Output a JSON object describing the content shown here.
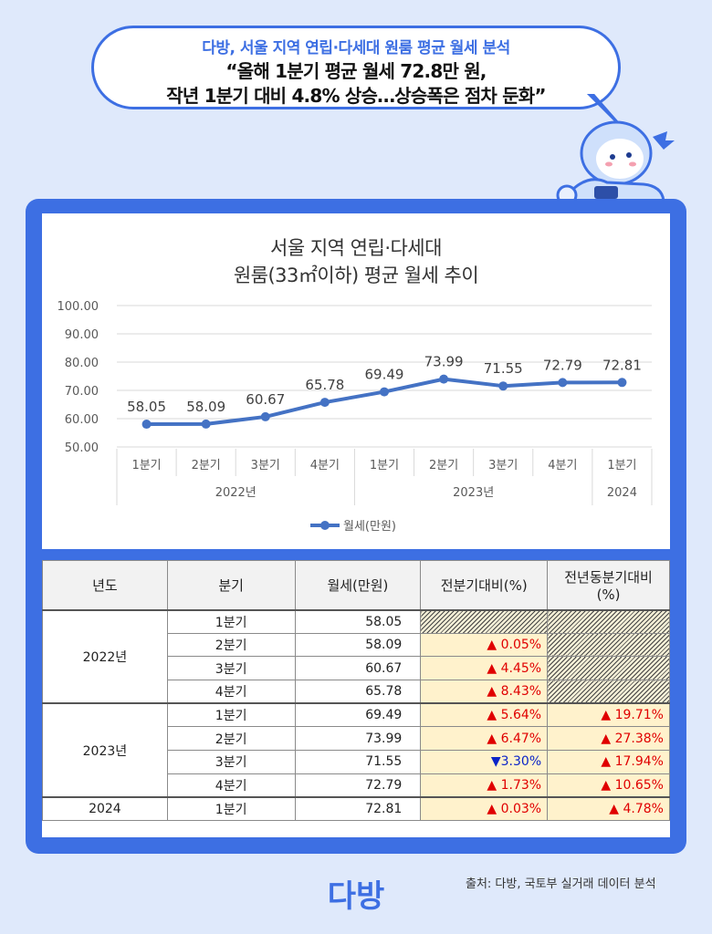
{
  "headline": {
    "line1": "다방, 서울 지역 연립·다세대 원룸 평균 월세 분석",
    "line2": "“올해 1분기 평균 월세 72.8만 원,",
    "line3": "작년 1분기 대비 4.8% 상승…상승폭은 점차 둔화”"
  },
  "colors": {
    "accent": "#3d6fe3",
    "line": "#4472c4",
    "up": "#e00000",
    "down": "#0b24c8",
    "highlight_cell": "#fff2cc"
  },
  "chart_data": {
    "type": "line",
    "title_line1": "서울 지역 연립·다세대",
    "title_line2": "원룸(33㎡이하) 평균 월세 추이",
    "categories": [
      "1분기",
      "2분기",
      "3분기",
      "4분기",
      "1분기",
      "2분기",
      "3분기",
      "4분기",
      "1분기"
    ],
    "groups": [
      {
        "label": "2022년",
        "count": 4
      },
      {
        "label": "2023년",
        "count": 4
      },
      {
        "label": "2024",
        "count": 1
      }
    ],
    "series": [
      {
        "name": "월세(만원)",
        "values": [
          58.05,
          58.09,
          60.67,
          65.78,
          69.49,
          73.99,
          71.55,
          72.79,
          72.81
        ]
      }
    ],
    "value_labels": [
      "58.05",
      "58.09",
      "60.67",
      "65.78",
      "69.49",
      "73.99",
      "71.55",
      "72.79",
      "72.81"
    ],
    "ylim": [
      50,
      100
    ],
    "yticks": [
      "50.00",
      "60.00",
      "70.00",
      "80.00",
      "90.00",
      "100.00"
    ],
    "grid": true,
    "legend": "bottom"
  },
  "table": {
    "headers": [
      "년도",
      "분기",
      "월세(만원)",
      "전분기대비(%)",
      "전년동분기대비(%)"
    ],
    "groups": [
      {
        "year": "2022년",
        "rows": [
          {
            "q": "1분기",
            "val": "58.05",
            "qoq": null,
            "yoy": null
          },
          {
            "q": "2분기",
            "val": "58.09",
            "qoq": "▲ 0.05%",
            "qoq_dir": "up",
            "yoy": null
          },
          {
            "q": "3분기",
            "val": "60.67",
            "qoq": "▲ 4.45%",
            "qoq_dir": "up",
            "yoy": null
          },
          {
            "q": "4분기",
            "val": "65.78",
            "qoq": "▲ 8.43%",
            "qoq_dir": "up",
            "yoy": null
          }
        ]
      },
      {
        "year": "2023년",
        "rows": [
          {
            "q": "1분기",
            "val": "69.49",
            "qoq": "▲ 5.64%",
            "qoq_dir": "up",
            "yoy": "▲ 19.71%",
            "yoy_dir": "up"
          },
          {
            "q": "2분기",
            "val": "73.99",
            "qoq": "▲ 6.47%",
            "qoq_dir": "up",
            "yoy": "▲ 27.38%",
            "yoy_dir": "up"
          },
          {
            "q": "3분기",
            "val": "71.55",
            "qoq": "▼3.30%",
            "qoq_dir": "down",
            "yoy": "▲ 17.94%",
            "yoy_dir": "up"
          },
          {
            "q": "4분기",
            "val": "72.79",
            "qoq": "▲ 1.73%",
            "qoq_dir": "up",
            "yoy": "▲ 10.65%",
            "yoy_dir": "up"
          }
        ]
      },
      {
        "year": "2024",
        "rows": [
          {
            "q": "1분기",
            "val": "72.81",
            "qoq": "▲ 0.03%",
            "qoq_dir": "up",
            "yoy": "▲ 4.78%",
            "yoy_dir": "up"
          }
        ]
      }
    ]
  },
  "source": "출처: 다방, 국토부 실거래 데이터 분석",
  "logo_text": "다방"
}
